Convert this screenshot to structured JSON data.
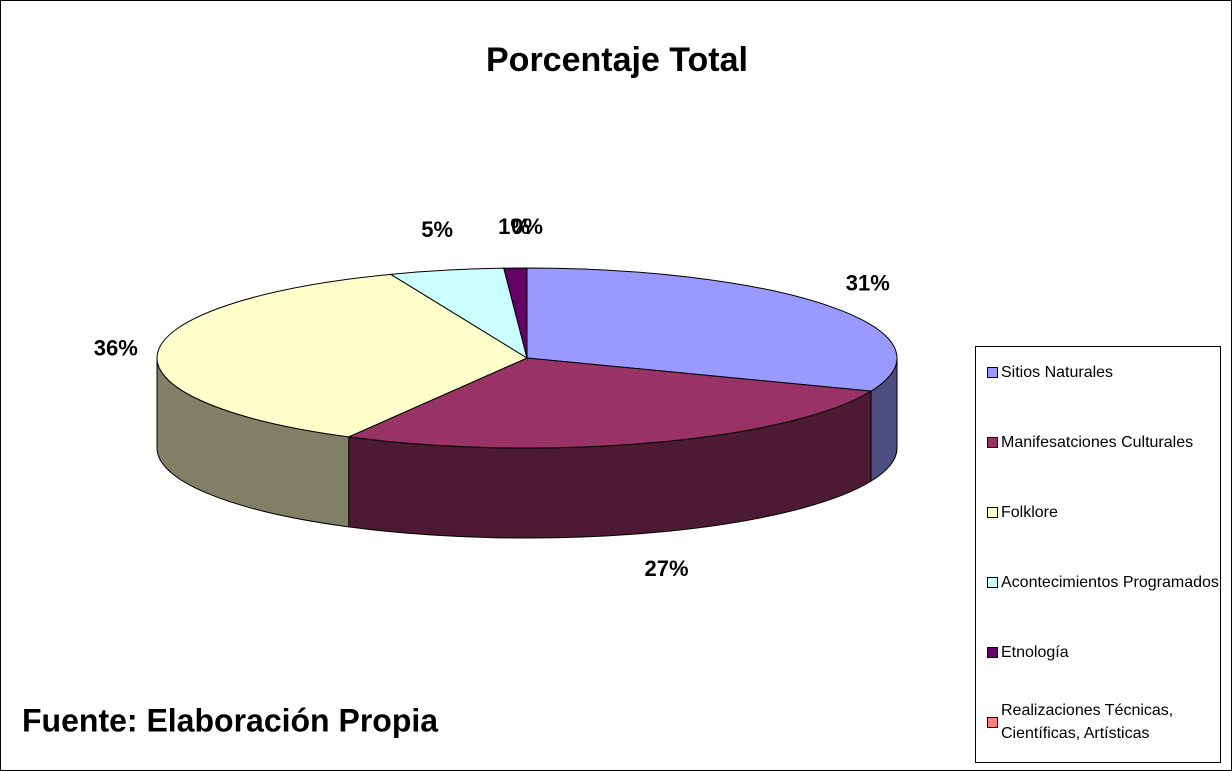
{
  "chart_data": {
    "type": "pie",
    "title": "Porcentaje Total",
    "categories": [
      "Sitios Naturales",
      "Manifesatciones Culturales",
      "Folklore",
      "Acontecimientos Programados",
      "Etnología",
      "Realizaciones Técnicas, Científicas, Artísticas"
    ],
    "values": [
      31,
      27,
      36,
      5,
      1,
      0
    ],
    "value_labels": [
      "31%",
      "27%",
      "36%",
      "5%",
      "1%",
      "0%"
    ],
    "colors": [
      "#9999ff",
      "#993366",
      "#ffffcc",
      "#ccffff",
      "#660066",
      "#ff8080"
    ],
    "legend": "right",
    "source": "Fuente: Elaboración Propia"
  }
}
